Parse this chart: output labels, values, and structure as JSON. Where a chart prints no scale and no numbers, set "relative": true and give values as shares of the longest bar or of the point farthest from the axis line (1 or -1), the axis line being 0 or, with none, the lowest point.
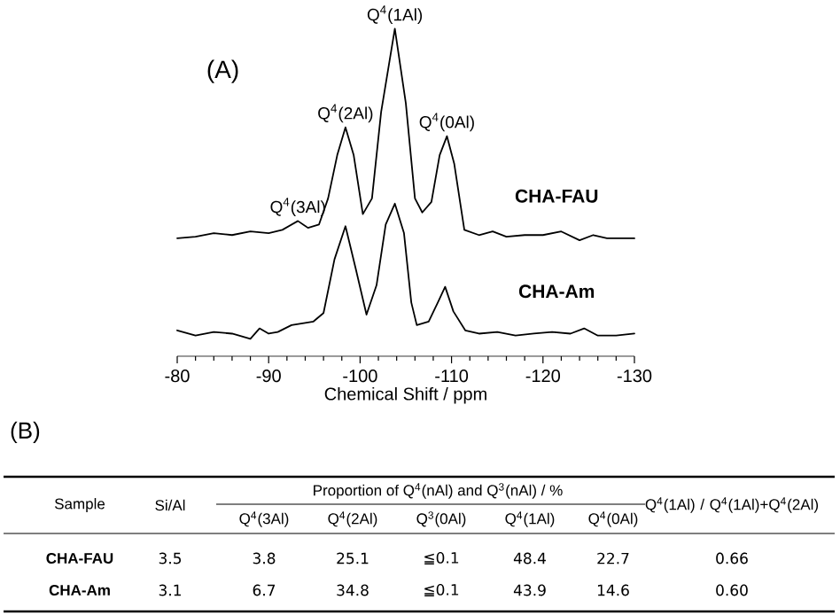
{
  "chart_data": [
    {
      "type": "line",
      "title": "(A)",
      "xlabel": "Chemical Shift / ppm",
      "relative": true,
      "xlim": [
        -80,
        -130
      ],
      "xticks": [
        -80,
        -90,
        -100,
        -110,
        -120,
        -130
      ],
      "series": [
        {
          "name": "CHA-FAU",
          "color": "#000000",
          "x": [
            -80,
            -82,
            -84,
            -86,
            -88,
            -90,
            -91.5,
            -93.2,
            -94.3,
            -95.5,
            -96.5,
            -97.5,
            -98.4,
            -99.3,
            -100.3,
            -101.3,
            -102.3,
            -103.8,
            -105,
            -106,
            -106.8,
            -107.8,
            -108.7,
            -109.5,
            -110.3,
            -111.4,
            -113,
            -114.5,
            -116,
            -118,
            -120,
            -122,
            -124,
            -125.5,
            -127,
            -130
          ],
          "values": [
            0.36,
            0.365,
            0.376,
            0.37,
            0.381,
            0.376,
            0.386,
            0.413,
            0.392,
            0.402,
            0.482,
            0.614,
            0.699,
            0.614,
            0.434,
            0.482,
            0.746,
            1.0,
            0.773,
            0.482,
            0.439,
            0.471,
            0.614,
            0.672,
            0.587,
            0.386,
            0.37,
            0.381,
            0.365,
            0.37,
            0.37,
            0.381,
            0.354,
            0.37,
            0.36,
            0.36
          ]
        },
        {
          "name": "CHA-Am",
          "color": "#000000",
          "x": [
            -80,
            -82,
            -84,
            -86,
            -88,
            -89,
            -90,
            -91,
            -92.5,
            -94.9,
            -96,
            -97.2,
            -98.4,
            -99.5,
            -100.7,
            -101.8,
            -102.8,
            -103.8,
            -104.8,
            -105.6,
            -106.2,
            -107.5,
            -108.5,
            -109.3,
            -110.2,
            -111.5,
            -113,
            -115,
            -117,
            -119,
            -121,
            -123,
            -124.5,
            -126,
            -128,
            -130
          ],
          "values": [
            0.079,
            0.063,
            0.074,
            0.069,
            0.053,
            0.085,
            0.069,
            0.074,
            0.095,
            0.106,
            0.132,
            0.296,
            0.397,
            0.27,
            0.127,
            0.217,
            0.402,
            0.466,
            0.376,
            0.164,
            0.095,
            0.106,
            0.164,
            0.212,
            0.137,
            0.079,
            0.069,
            0.074,
            0.063,
            0.069,
            0.074,
            0.069,
            0.085,
            0.063,
            0.063,
            0.069
          ]
        }
      ],
      "annotations": [
        {
          "text": "Q$^{4}$(3Al)",
          "x": -93.2,
          "y": 0.413
        },
        {
          "text": "Q$^{4}$(2Al)",
          "x": -98.4,
          "y": 0.699
        },
        {
          "text": "Q$^{4}$(1Al)",
          "x": -103.8,
          "y": 1.0
        },
        {
          "text": "Q$^{4}$(0Al)",
          "x": -109.5,
          "y": 0.672
        }
      ]
    },
    {
      "type": "other",
      "title": "(B)",
      "subtitle": "Proportion of Q$^{4}$(nAl) and Q$^{3}$(nAl) / %",
      "categories": [
        "Sample",
        "Si/Al",
        "Q$^{4}$(3Al)",
        "Q$^{4}$(2Al)",
        "Q$^{3}$(0Al)",
        "Q$^{4}$(1Al)",
        "Q$^{4}$(0Al)",
        "Q$^{4}$(1Al) / Q$^{4}$(1Al)+Q$^{4}$(2Al)"
      ],
      "y_categories": [
        "CHA-FAU",
        "CHA-Am"
      ],
      "cell_labels": [
        [
          "3.5",
          "3.8",
          "25.1",
          "≦0.1",
          "48.4",
          "22.7",
          "0.66"
        ],
        [
          "3.1",
          "6.7",
          "34.8",
          "≦0.1",
          "43.9",
          "14.6",
          "0.60"
        ]
      ]
    }
  ]
}
